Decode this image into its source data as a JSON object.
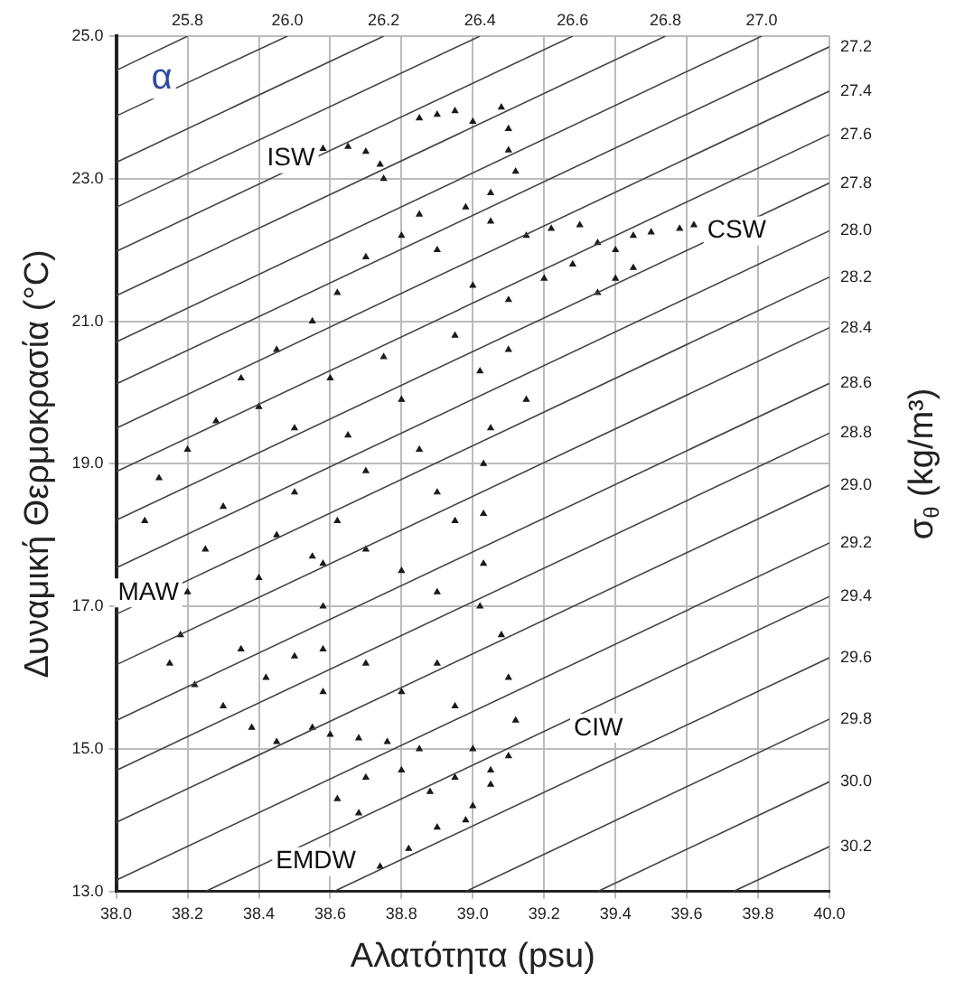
{
  "chart_data": {
    "type": "scatter",
    "xlabel": "Αλατότητα (psu)",
    "ylabel": "Δυναμική Θερμοκρασία (°C)",
    "y2label": "σ$_{θ}$ (kg/m³)",
    "xlim": [
      38.0,
      40.0
    ],
    "ylim": [
      13.0,
      25.0
    ],
    "xticks": [
      {
        "value": 38.0,
        "label": "38.0"
      },
      {
        "value": 38.2,
        "label": "38.2"
      },
      {
        "value": 38.4,
        "label": "38.4"
      },
      {
        "value": 38.6,
        "label": "38.6"
      },
      {
        "value": 38.8,
        "label": "38.8"
      },
      {
        "value": 39.0,
        "label": "39.0"
      },
      {
        "value": 39.2,
        "label": "39.2"
      },
      {
        "value": 39.4,
        "label": "39.4"
      },
      {
        "value": 39.6,
        "label": "39.6"
      },
      {
        "value": 39.8,
        "label": "39.8"
      },
      {
        "value": 40.0,
        "label": "40.0"
      }
    ],
    "yticks": [
      {
        "value": 13.0,
        "label": "13.0"
      },
      {
        "value": 15.0,
        "label": "15.0"
      },
      {
        "value": 17.0,
        "label": "17.0"
      },
      {
        "value": 19.0,
        "label": "19.0"
      },
      {
        "value": 21.0,
        "label": "21.0"
      },
      {
        "value": 23.0,
        "label": "23.0"
      },
      {
        "value": 25.0,
        "label": "25.0"
      }
    ],
    "grid": true,
    "annotations": [
      "α",
      {
        "text": "ISW",
        "x": 38.49,
        "y": 23.28
      },
      {
        "text": "CSW",
        "x": 39.74,
        "y": 22.27
      },
      {
        "text": "MAW",
        "x": 38.09,
        "y": 17.19
      },
      "CIW",
      "EMDW"
    ],
    "series": [
      {
        "name": "25.8",
        "type": "line",
        "color": "#444444",
        "x": [
          38.0,
          38.2
        ],
        "values": [
          24.52,
          25.0
        ]
      },
      {
        "name": "26.0",
        "type": "line",
        "color": "#444444",
        "x": [
          38.0,
          38.48
        ],
        "values": [
          23.88,
          25.0
        ]
      },
      {
        "name": "26.2",
        "type": "line",
        "color": "#444444",
        "x": [
          38.0,
          38.75
        ],
        "values": [
          23.23,
          25.0
        ]
      },
      {
        "name": "26.4",
        "type": "line",
        "color": "#444444",
        "x": [
          38.0,
          39.02
        ],
        "values": [
          22.6,
          25.0
        ]
      },
      {
        "name": "26.6",
        "type": "line",
        "color": "#444444",
        "x": [
          38.0,
          39.28
        ],
        "values": [
          21.98,
          25.0
        ]
      },
      {
        "name": "26.8",
        "type": "line",
        "color": "#444444",
        "x": [
          38.0,
          39.54
        ],
        "values": [
          21.36,
          25.0
        ]
      },
      {
        "name": "27.0",
        "type": "line",
        "color": "#444444",
        "x": [
          38.0,
          39.81
        ],
        "values": [
          20.71,
          25.0
        ]
      },
      {
        "name": "27.2",
        "type": "line",
        "color": "#444444",
        "x": [
          38.0,
          40.0
        ],
        "values": [
          20.12,
          24.85
        ]
      },
      {
        "name": "27.4",
        "type": "line",
        "color": "#444444",
        "x": [
          38.0,
          40.0
        ],
        "values": [
          19.5,
          24.23
        ]
      },
      {
        "name": "27.6",
        "type": "line",
        "color": "#444444",
        "x": [
          38.0,
          40.0
        ],
        "values": [
          18.89,
          23.62
        ]
      },
      {
        "name": "27.8",
        "type": "line",
        "color": "#444444",
        "x": [
          38.0,
          40.0
        ],
        "values": [
          18.21,
          22.94
        ]
      },
      {
        "name": "28.0",
        "type": "line",
        "color": "#444444",
        "x": [
          38.0,
          40.0
        ],
        "values": [
          17.54,
          22.27
        ]
      },
      {
        "name": "28.2",
        "type": "line",
        "color": "#444444",
        "x": [
          38.0,
          40.0
        ],
        "values": [
          16.89,
          21.62
        ]
      },
      {
        "name": "28.4",
        "type": "line",
        "color": "#444444",
        "x": [
          38.0,
          40.0
        ],
        "values": [
          16.18,
          20.91
        ]
      },
      {
        "name": "28.6",
        "type": "line",
        "color": "#444444",
        "x": [
          38.0,
          40.0
        ],
        "values": [
          15.4,
          20.13
        ]
      },
      {
        "name": "28.8",
        "type": "line",
        "color": "#444444",
        "x": [
          38.0,
          40.0
        ],
        "values": [
          14.7,
          19.43
        ]
      },
      {
        "name": "29.0",
        "type": "line",
        "color": "#444444",
        "x": [
          38.0,
          40.0
        ],
        "values": [
          13.97,
          18.7
        ]
      },
      {
        "name": "29.2",
        "type": "line",
        "color": "#444444",
        "x": [
          38.0,
          40.0
        ],
        "values": [
          13.16,
          17.89
        ]
      },
      {
        "name": "29.4",
        "type": "line",
        "color": "#444444",
        "x": [
          38.25,
          40.0
        ],
        "values": [
          13.0,
          17.14
        ]
      },
      {
        "name": "29.6",
        "type": "line",
        "color": "#444444",
        "x": [
          38.61,
          40.0
        ],
        "values": [
          13.0,
          16.28
        ]
      },
      {
        "name": "29.8",
        "type": "line",
        "color": "#444444",
        "x": [
          38.98,
          40.0
        ],
        "values": [
          13.0,
          15.42
        ]
      },
      {
        "name": "30.0",
        "type": "line",
        "color": "#444444",
        "x": [
          39.35,
          40.0
        ],
        "values": [
          13.0,
          14.54
        ]
      },
      {
        "name": "30.2",
        "type": "line",
        "color": "#444444",
        "x": [
          39.73,
          40.0
        ],
        "values": [
          13.0,
          13.63
        ]
      },
      {
        "type": "scatter",
        "color": "#1a1a1a",
        "marker": "triangle",
        "x": [
          38.58,
          38.65,
          38.7,
          38.74,
          38.75,
          38.85,
          38.9,
          38.95,
          39.0,
          39.08,
          39.1,
          39.1,
          39.12,
          39.05,
          38.98,
          39.05,
          39.15,
          39.22,
          39.3,
          39.35,
          39.4,
          39.45,
          39.5,
          39.58,
          39.62,
          39.45,
          39.4,
          39.35,
          39.28,
          39.2,
          39.1,
          39.0,
          38.9,
          38.85,
          38.8,
          38.7,
          38.62,
          38.55,
          38.45,
          38.35,
          38.28,
          38.2,
          38.12,
          38.08,
          38.4,
          38.5,
          38.6,
          38.65,
          38.7,
          38.75,
          38.8,
          38.85,
          38.9,
          38.95,
          39.02,
          39.1,
          39.15,
          39.05,
          38.95,
          38.5,
          38.45,
          38.55,
          38.4,
          38.3,
          38.25,
          38.2,
          38.62,
          38.7,
          38.8,
          38.9,
          39.03,
          39.03,
          39.03,
          39.02,
          38.18,
          38.15,
          38.22,
          38.3,
          38.38,
          38.45,
          38.55,
          38.58,
          38.58,
          38.58,
          38.58,
          38.6,
          38.68,
          38.76,
          38.85,
          38.35,
          38.42,
          38.5,
          38.7,
          38.8,
          38.9,
          38.95,
          39.0,
          39.08,
          39.1,
          39.12,
          39.1,
          39.05,
          38.95,
          38.88,
          38.8,
          38.7,
          38.62,
          38.68,
          38.9,
          38.82,
          38.74,
          39.0,
          38.98,
          39.05
        ],
        "values": [
          23.42,
          23.45,
          23.38,
          23.2,
          23.0,
          23.85,
          23.9,
          23.95,
          23.8,
          24.0,
          23.7,
          23.4,
          23.1,
          22.8,
          22.6,
          22.4,
          22.2,
          22.3,
          22.35,
          22.1,
          22.0,
          22.2,
          22.25,
          22.3,
          22.35,
          21.75,
          21.6,
          21.4,
          21.8,
          21.6,
          21.3,
          21.5,
          22.0,
          22.5,
          22.2,
          21.9,
          21.4,
          21.0,
          20.6,
          20.2,
          19.6,
          19.2,
          18.8,
          18.2,
          19.8,
          19.5,
          20.2,
          19.4,
          18.9,
          20.5,
          19.9,
          19.2,
          18.6,
          20.8,
          20.3,
          20.6,
          19.9,
          19.5,
          18.2,
          18.6,
          18.0,
          17.7,
          17.4,
          18.4,
          17.8,
          17.2,
          18.2,
          17.8,
          17.5,
          17.2,
          19.0,
          18.3,
          17.6,
          17.0,
          16.6,
          16.2,
          15.9,
          15.6,
          15.3,
          15.1,
          15.3,
          17.6,
          17.0,
          16.4,
          15.8,
          15.2,
          15.15,
          15.1,
          15.0,
          16.4,
          16.0,
          16.3,
          16.2,
          15.8,
          16.2,
          15.6,
          15.0,
          16.6,
          16.0,
          15.4,
          14.9,
          14.5,
          14.6,
          14.4,
          14.7,
          14.6,
          14.3,
          14.1,
          13.9,
          13.6,
          13.35,
          14.2,
          14.0,
          14.7
        ]
      }
    ]
  }
}
